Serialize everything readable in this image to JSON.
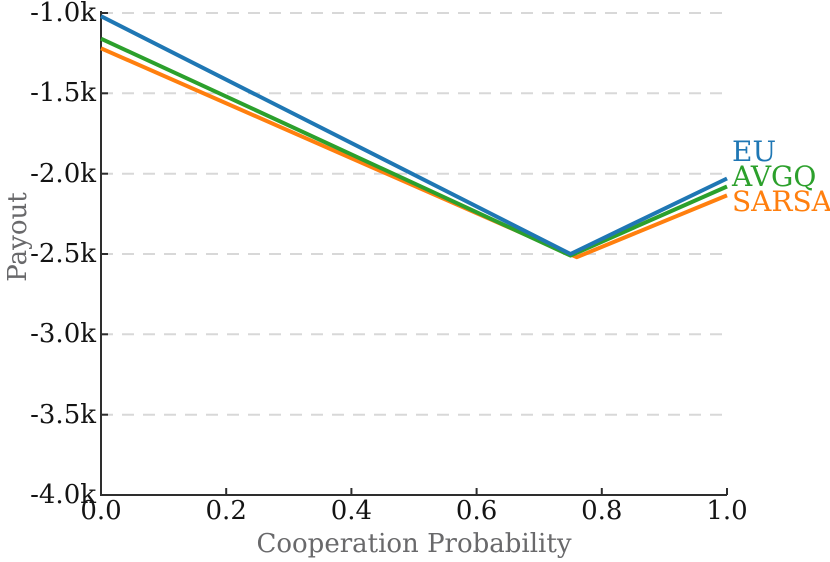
{
  "chart_data": {
    "type": "line",
    "title": "",
    "xlabel": "Cooperation Probability",
    "ylabel": "Payout",
    "xlim": [
      0.0,
      1.0
    ],
    "ylim": [
      -4000,
      -1000
    ],
    "xticks": {
      "values": [
        0.0,
        0.2,
        0.4,
        0.6,
        0.8,
        1.0
      ],
      "labels": [
        "0.0",
        "0.2",
        "0.4",
        "0.6",
        "0.8",
        "1.0"
      ]
    },
    "yticks": {
      "values": [
        -1000,
        -1500,
        -2000,
        -2500,
        -3000,
        -3500,
        -4000
      ],
      "labels": [
        "-1.0k",
        "-1.5k",
        "-2.0k",
        "-2.5k",
        "-3.0k",
        "-3.5k",
        "-4.0k"
      ]
    },
    "grid": "horizontal-dashed",
    "legend_position": "right-outside",
    "series": [
      {
        "name": "EU",
        "color": "#1f77b4",
        "points": [
          [
            0.0,
            -1020
          ],
          [
            0.75,
            -2500
          ],
          [
            1.0,
            -2030
          ]
        ]
      },
      {
        "name": "AVGQ",
        "color": "#2ca02c",
        "points": [
          [
            0.0,
            -1160
          ],
          [
            0.75,
            -2510
          ],
          [
            1.0,
            -2080
          ]
        ]
      },
      {
        "name": "SARSA",
        "color": "#ff7f0e",
        "points": [
          [
            0.0,
            -1220
          ],
          [
            0.76,
            -2520
          ],
          [
            1.0,
            -2135
          ]
        ]
      }
    ],
    "colors": {
      "grid": "#d8d8d8",
      "axis": "#2e2e2e",
      "tick_text": "#141414",
      "axis_label_text": "#69696b",
      "background": "#ffffff"
    }
  }
}
